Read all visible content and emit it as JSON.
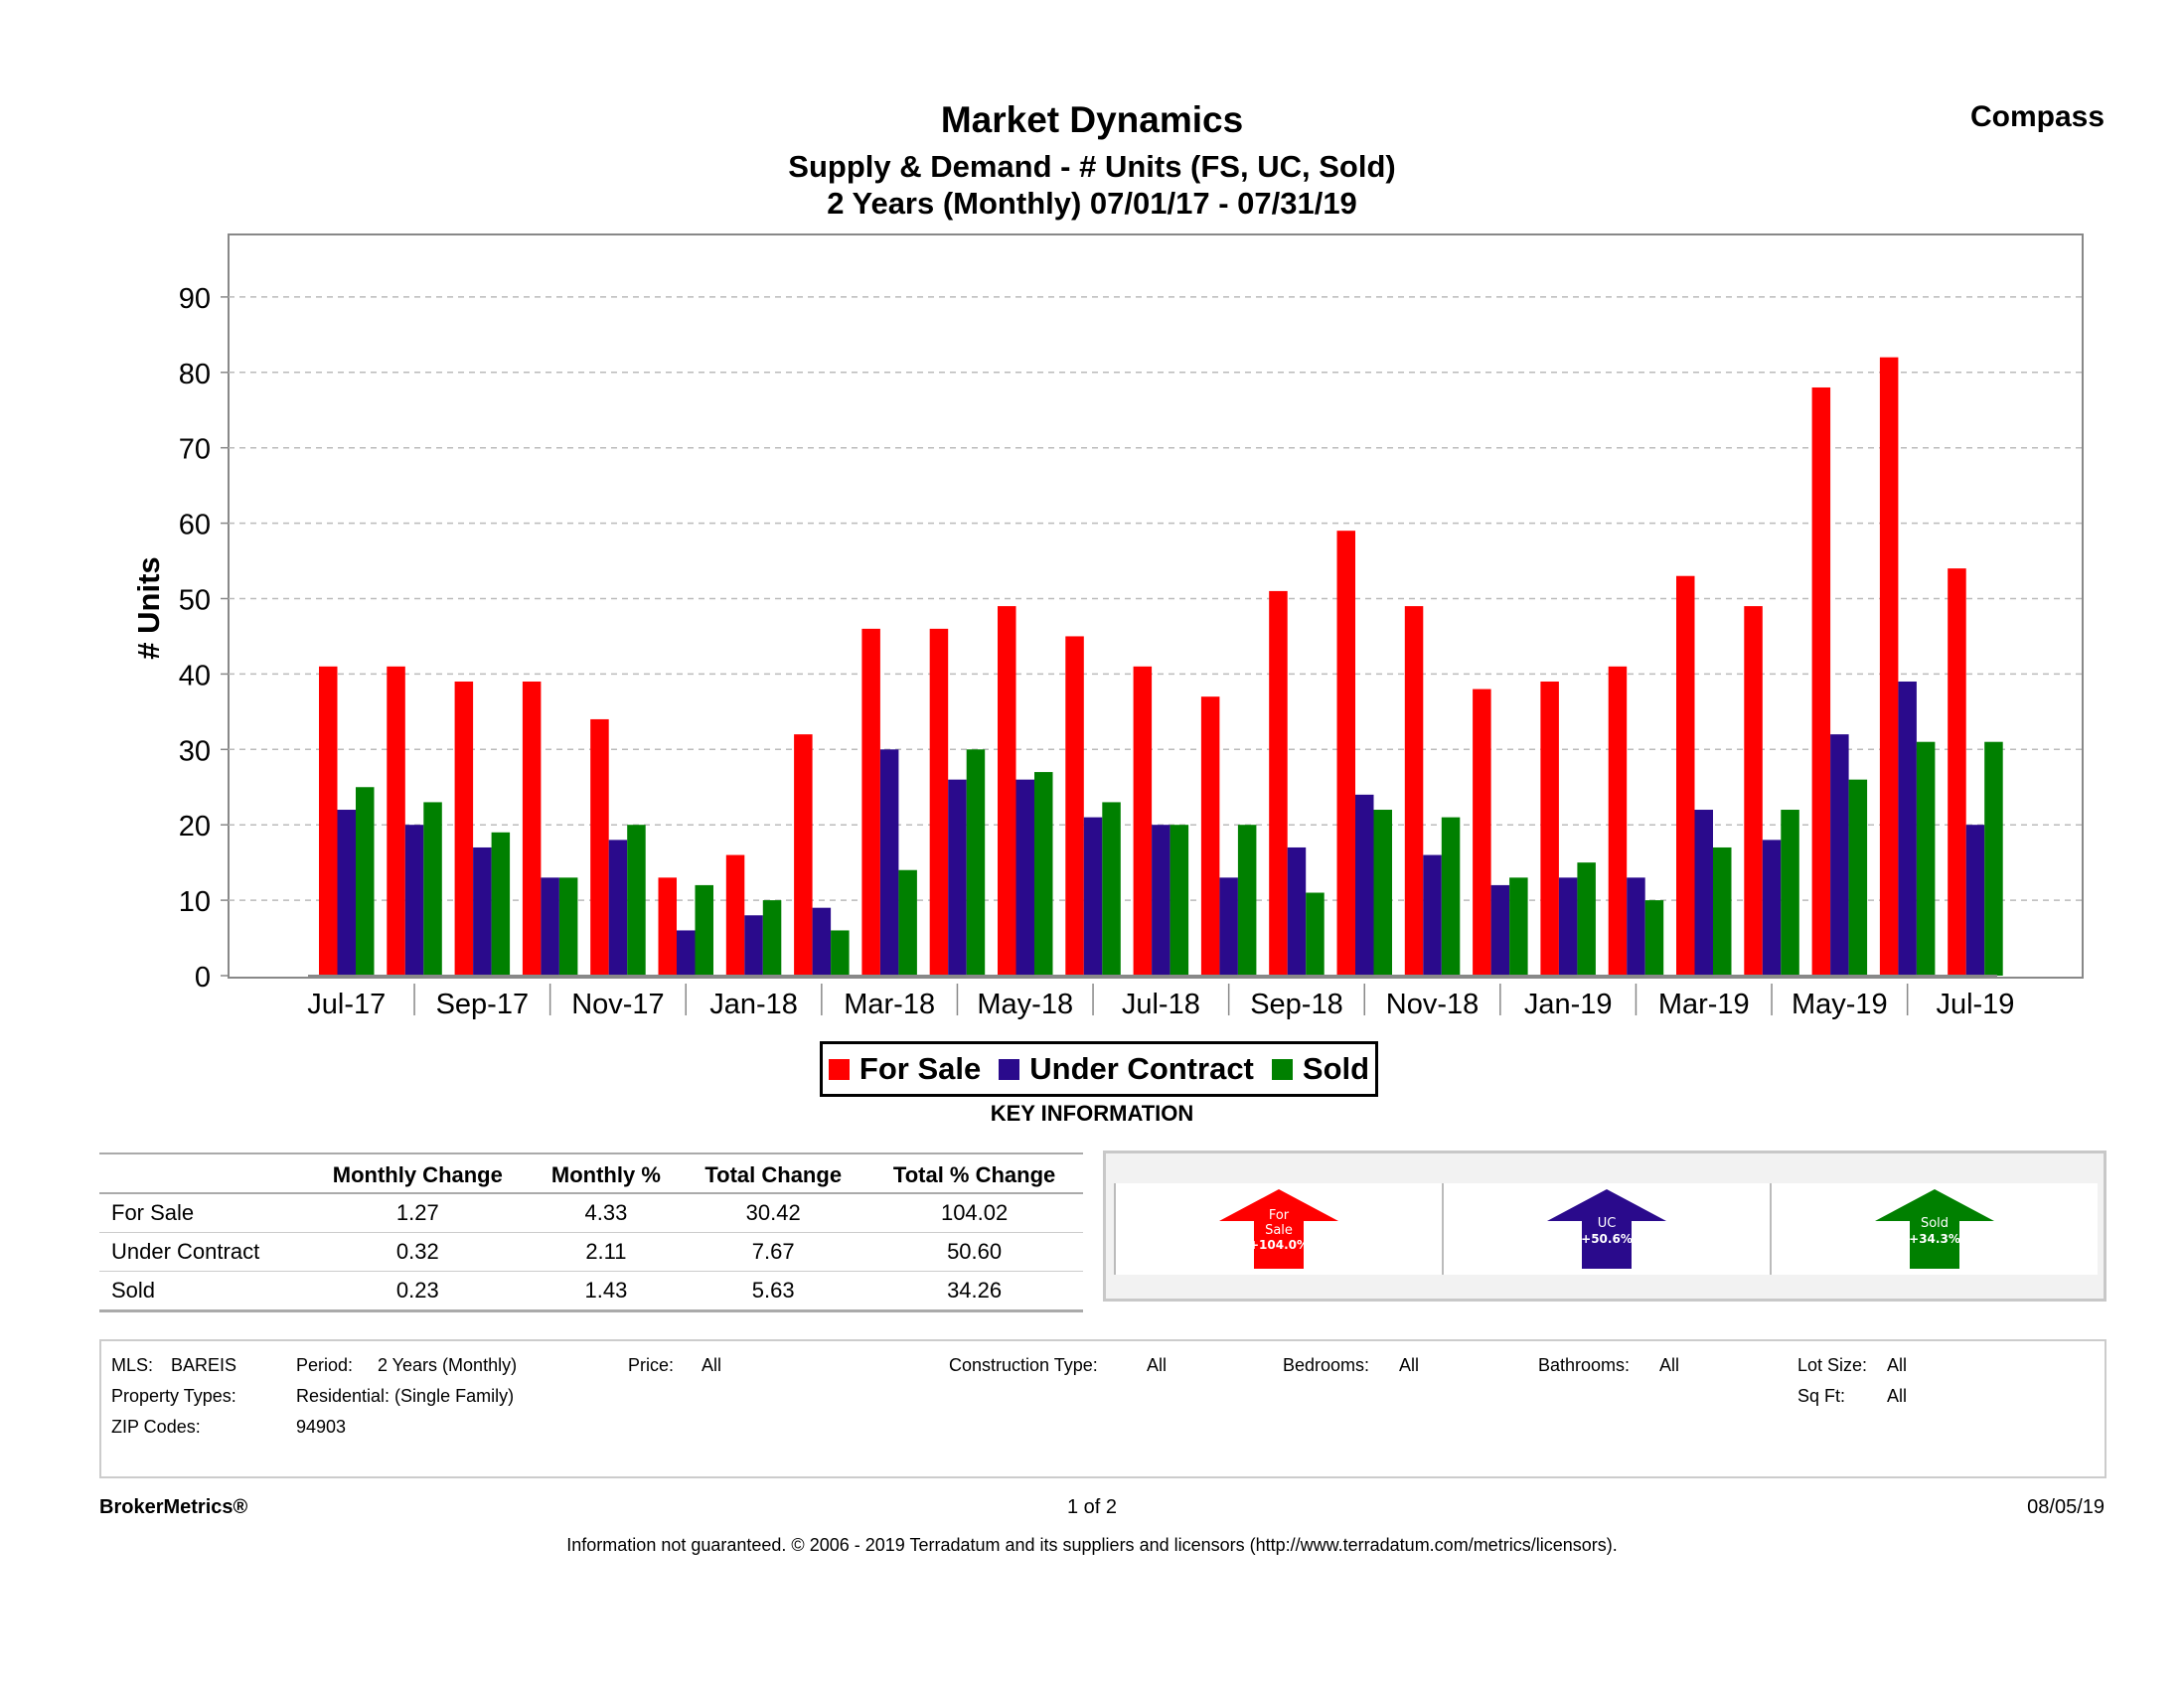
{
  "header": {
    "title": "Market Dynamics",
    "subtitle1": "Supply & Demand - # Units (FS, UC, Sold)",
    "subtitle2": "2 Years (Monthly) 07/01/17 - 07/31/19",
    "brand": "Compass"
  },
  "chart_data": {
    "type": "bar",
    "title": "Market Dynamics",
    "ylabel": "# Units",
    "xlabel": "",
    "ylim": [
      0,
      98
    ],
    "yticks": [
      0,
      10,
      20,
      30,
      40,
      50,
      60,
      70,
      80,
      90
    ],
    "grid": true,
    "months": [
      "Jul-17",
      "Aug-17",
      "Sep-17",
      "Oct-17",
      "Nov-17",
      "Dec-17",
      "Jan-18",
      "Feb-18",
      "Mar-18",
      "Apr-18",
      "May-18",
      "Jun-18",
      "Jul-18",
      "Aug-18",
      "Sep-18",
      "Oct-18",
      "Nov-18",
      "Dec-18",
      "Jan-19",
      "Feb-19",
      "Mar-19",
      "Apr-19",
      "May-19",
      "Jun-19",
      "Jul-19"
    ],
    "tick_labels": [
      "Jul-17",
      "Sep-17",
      "Nov-17",
      "Jan-18",
      "Mar-18",
      "May-18",
      "Jul-18",
      "Sep-18",
      "Nov-18",
      "Jan-19",
      "Mar-19",
      "May-19",
      "Jul-19"
    ],
    "series": [
      {
        "name": "For Sale",
        "color": "#ff0000",
        "values": [
          41,
          41,
          39,
          39,
          34,
          13,
          16,
          32,
          46,
          46,
          49,
          45,
          41,
          37,
          51,
          59,
          49,
          38,
          39,
          41,
          53,
          49,
          78,
          82,
          54
        ]
      },
      {
        "name": "Under Contract",
        "color": "#2a0a8c",
        "values": [
          22,
          20,
          17,
          13,
          18,
          6,
          8,
          9,
          30,
          26,
          26,
          21,
          20,
          13,
          17,
          24,
          16,
          12,
          13,
          13,
          22,
          18,
          32,
          39,
          20
        ]
      },
      {
        "name": "Sold",
        "color": "#008000",
        "values": [
          25,
          23,
          19,
          13,
          20,
          12,
          10,
          6,
          14,
          30,
          27,
          23,
          20,
          20,
          11,
          22,
          21,
          13,
          15,
          10,
          17,
          22,
          26,
          31,
          31
        ]
      }
    ],
    "legend_position": "bottom-center"
  },
  "legend": {
    "items": [
      {
        "label": "For Sale",
        "color": "#ff0000"
      },
      {
        "label": "Under Contract",
        "color": "#2a0a8c"
      },
      {
        "label": "Sold",
        "color": "#008000"
      }
    ]
  },
  "key_information": {
    "title": "KEY INFORMATION",
    "columns": [
      "",
      "Monthly Change",
      "Monthly %",
      "Total Change",
      "Total % Change"
    ],
    "rows": [
      {
        "label": "For Sale",
        "monthly_change": "1.27",
        "monthly_pct": "4.33",
        "total_change": "30.42",
        "total_pct": "104.02"
      },
      {
        "label": "Under Contract",
        "monthly_change": "0.32",
        "monthly_pct": "2.11",
        "total_change": "7.67",
        "total_pct": "50.60"
      },
      {
        "label": "Sold",
        "monthly_change": "0.23",
        "monthly_pct": "1.43",
        "total_change": "5.63",
        "total_pct": "34.26"
      }
    ]
  },
  "arrows": [
    {
      "line1": "For",
      "line2": "Sale",
      "line3": "+104.0%",
      "color": "#ff0000"
    },
    {
      "line1": "UC",
      "line2": "+50.6%",
      "line3": "",
      "color": "#2a0a8c"
    },
    {
      "line1": "Sold",
      "line2": "+34.3%",
      "line3": "",
      "color": "#008000"
    }
  ],
  "criteria": {
    "mls_label": "MLS:",
    "mls_value": "BAREIS",
    "period_label": "Period:",
    "period_value": "2 Years (Monthly)",
    "price_label": "Price:",
    "price_value": "All",
    "construction_label": "Construction Type:",
    "construction_value": "All",
    "bedrooms_label": "Bedrooms:",
    "bedrooms_value": "All",
    "bathrooms_label": "Bathrooms:",
    "bathrooms_value": "All",
    "lot_label": "Lot Size:",
    "lot_value": "All",
    "property_label": "Property Types:",
    "property_value": "Residential: (Single Family)",
    "sqft_label": "Sq Ft:",
    "sqft_value": "All",
    "zip_label": "ZIP Codes:",
    "zip_value": "94903"
  },
  "footer": {
    "left": "BrokerMetrics®",
    "center": "1 of 2",
    "right": "08/05/19",
    "disclaimer": "Information not guaranteed.  © 2006 - 2019 Terradatum and its suppliers and licensors (http://www.terradatum.com/metrics/licensors)."
  }
}
